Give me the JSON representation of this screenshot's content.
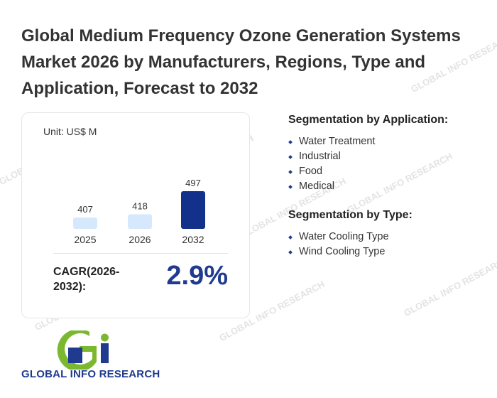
{
  "title": "Global Medium Frequency Ozone Generation Systems Market 2026 by Manufacturers, Regions, Type and Application, Forecast to 2032",
  "chart_data": {
    "type": "bar",
    "unit": "Unit: US$ M",
    "categories": [
      "2025",
      "2026",
      "2032"
    ],
    "values": [
      407,
      418,
      497
    ],
    "bar_colors": [
      "#d6e8fb",
      "#d6e8fb",
      "#13318a"
    ],
    "cagr_label": "CAGR(2026-2032):",
    "cagr_value": "2.9%"
  },
  "segmentation": {
    "application_title": "Segmentation by Application:",
    "application_items": [
      "Water Treatment",
      "Industrial",
      "Food",
      "Medical"
    ],
    "type_title": "Segmentation by Type:",
    "type_items": [
      "Water Cooling Type",
      "Wind Cooling Type"
    ]
  },
  "logo": {
    "text": "GLOBAL INFO RESEARCH",
    "colors": {
      "green": "#7cb82f",
      "blue": "#1f3a8f"
    }
  },
  "watermark": "GLOBAL INFO RESEARCH"
}
